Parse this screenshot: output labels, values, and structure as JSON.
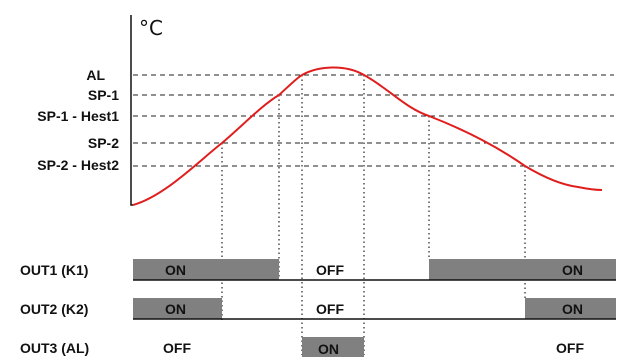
{
  "diagram": {
    "unit": "°C",
    "levels": {
      "al": "AL",
      "sp1": "SP-1",
      "sp1_hest1": "SP-1 - Hest1",
      "sp2": "SP-2",
      "sp2_hest2": "SP-2 - Hest2"
    },
    "outputs": [
      {
        "label": "OUT1 (K1)",
        "states": [
          "ON",
          "OFF",
          "ON"
        ]
      },
      {
        "label": "OUT2 (K2)",
        "states": [
          "ON",
          "OFF",
          "ON"
        ]
      },
      {
        "label": "OUT3 (AL)",
        "states": [
          "OFF",
          "ON",
          "OFF"
        ]
      }
    ]
  }
}
